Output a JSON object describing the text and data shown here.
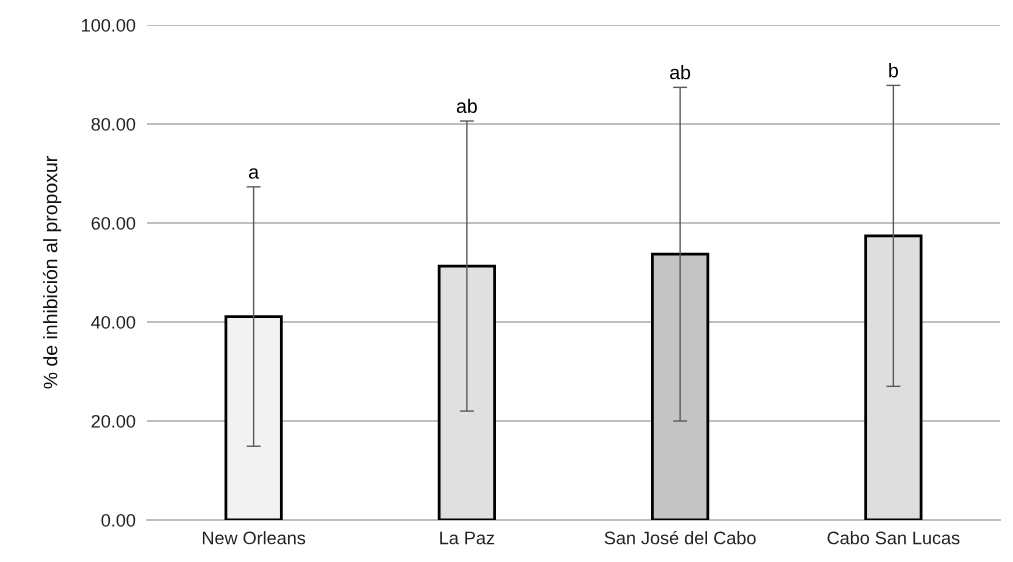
{
  "chart_data": {
    "type": "bar",
    "ylabel": "% de inhibición al propoxur",
    "categories": [
      "New Orleans",
      "La Paz",
      "San José del Cabo",
      "Cabo San Lucas"
    ],
    "values": [
      41.1,
      51.3,
      53.7,
      57.4
    ],
    "errors": [
      26.2,
      29.3,
      33.7,
      30.4
    ],
    "colors": [
      "#f2f2f2",
      "#e0e0e0",
      "#c4c4c4",
      "#dedede"
    ],
    "annotations": [
      {
        "text": "a",
        "x": "New Orleans",
        "y": 67.3
      },
      {
        "text": "ab",
        "x": "La Paz",
        "y": 80.6
      },
      {
        "text": "ab",
        "x": "San José del Cabo",
        "y": 87.4
      },
      {
        "text": "b",
        "x": "Cabo San Lucas",
        "y": 87.8
      }
    ],
    "ylim": [
      0,
      100
    ],
    "yticks": [
      {
        "value": 0,
        "label": "0.00"
      },
      {
        "value": 20,
        "label": "20.00"
      },
      {
        "value": 40,
        "label": "40.00"
      },
      {
        "value": 60,
        "label": "60.00"
      },
      {
        "value": 80,
        "label": "80.00"
      },
      {
        "value": 100,
        "label": "100.00"
      }
    ],
    "grid": "y",
    "legend": false
  }
}
